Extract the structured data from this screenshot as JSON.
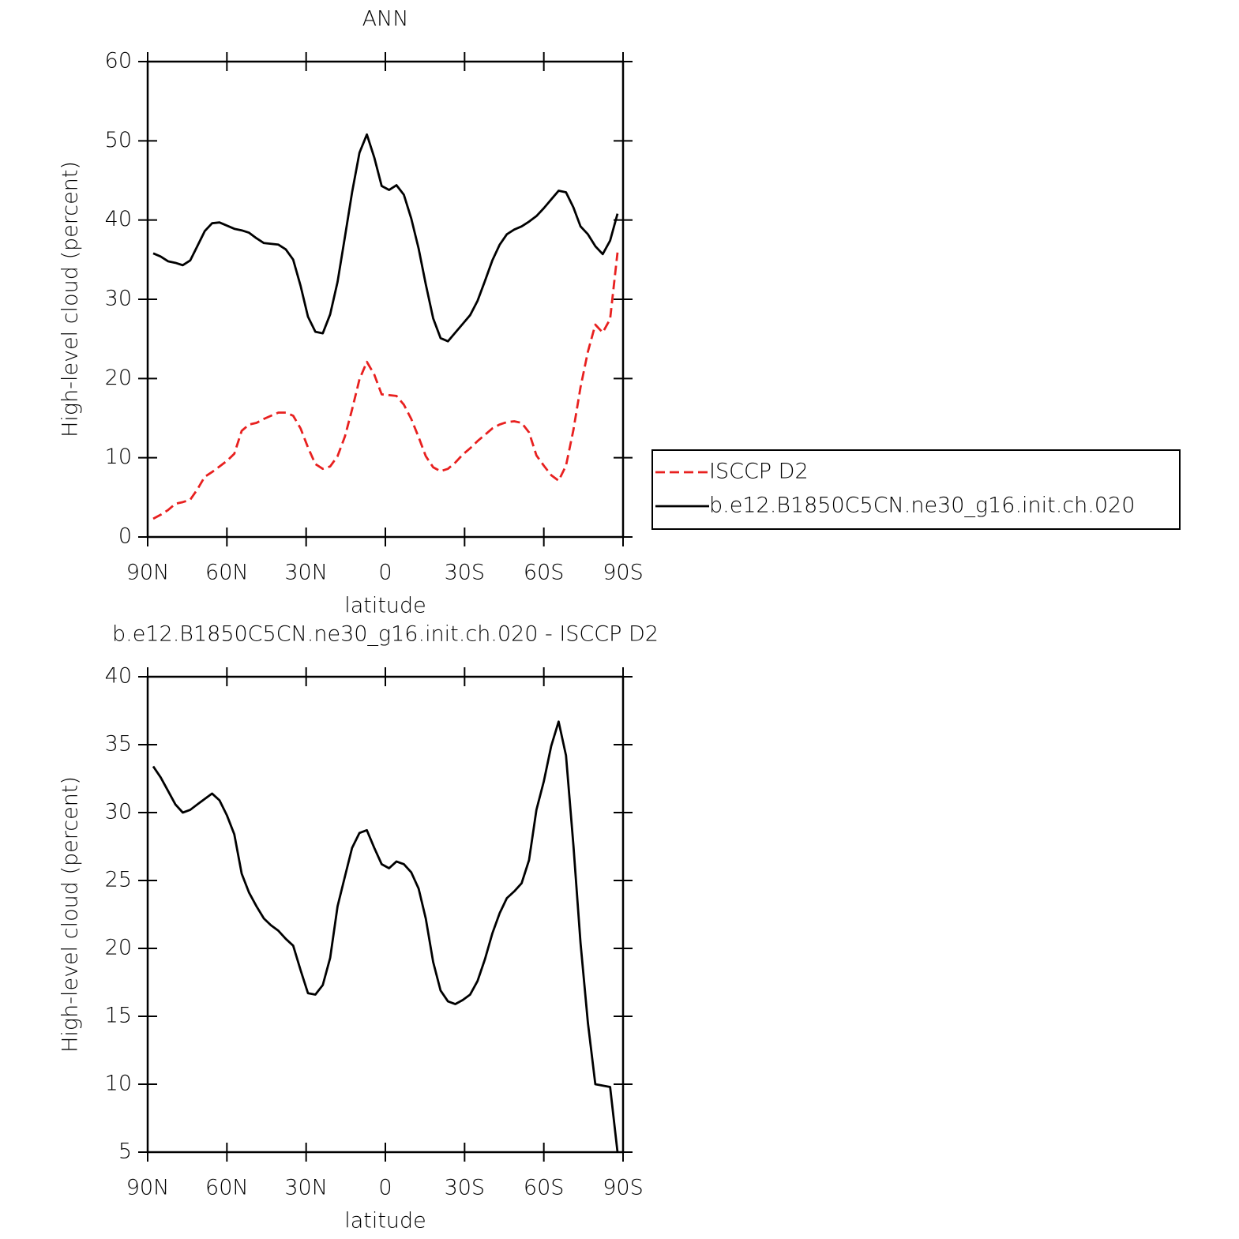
{
  "chart_data": [
    {
      "type": "line",
      "title": "ANN",
      "xlabel": "latitude",
      "ylabel": "High-level cloud (percent)",
      "xlim": [
        90,
        -90
      ],
      "ylim": [
        0,
        60
      ],
      "xticks": [
        {
          "value": 90,
          "label": "90N"
        },
        {
          "value": 60,
          "label": "60N"
        },
        {
          "value": 30,
          "label": "30N"
        },
        0,
        {
          "value": -30,
          "label": "30S"
        },
        {
          "value": -60,
          "label": "60S"
        },
        {
          "value": -90,
          "label": "90S"
        }
      ],
      "yticks": [
        0,
        10,
        20,
        30,
        40,
        50,
        60
      ],
      "legend": "right",
      "x": [
        87.9,
        85.1,
        82.3,
        79.5,
        76.7,
        73.9,
        71.2,
        68.4,
        65.6,
        62.8,
        60.0,
        57.2,
        54.4,
        51.6,
        48.8,
        46.0,
        43.3,
        40.5,
        37.7,
        34.9,
        32.1,
        29.3,
        26.5,
        23.7,
        20.9,
        18.1,
        15.3,
        12.6,
        9.8,
        7.0,
        4.2,
        1.4,
        -1.4,
        -4.2,
        -7.0,
        -9.8,
        -12.6,
        -15.3,
        -18.1,
        -20.9,
        -23.7,
        -26.5,
        -29.3,
        -32.1,
        -34.9,
        -37.7,
        -40.5,
        -43.3,
        -46.0,
        -48.8,
        -51.6,
        -54.4,
        -57.2,
        -60.0,
        -62.8,
        -65.6,
        -68.4,
        -71.2,
        -73.9,
        -76.7,
        -79.5,
        -82.3,
        -85.1,
        -87.9
      ],
      "series": [
        {
          "name": "ISCCP D2",
          "color": "#e8201f",
          "line_style": "dashed",
          "values": [
            2.3,
            2.8,
            3.4,
            4.2,
            4.4,
            4.7,
            6.0,
            7.6,
            8.2,
            8.9,
            9.6,
            10.5,
            13.4,
            14.2,
            14.4,
            14.9,
            15.3,
            15.7,
            15.7,
            15.3,
            13.7,
            11.3,
            9.2,
            8.6,
            8.9,
            10.2,
            12.7,
            16.1,
            19.9,
            22.1,
            20.5,
            18.0,
            17.9,
            17.8,
            16.7,
            14.9,
            12.6,
            10.2,
            8.8,
            8.3,
            8.6,
            9.4,
            10.4,
            11.2,
            12.1,
            12.9,
            13.7,
            14.2,
            14.5,
            14.6,
            14.4,
            13.2,
            10.3,
            9.0,
            7.8,
            7.1,
            9.0,
            13.5,
            18.9,
            23.4,
            26.8,
            25.8,
            27.5,
            35.9
          ]
        },
        {
          "name": "b.e12.B1850C5CN.ne30_g16.init.ch.020",
          "color": "#000000",
          "line_style": "solid",
          "values": [
            35.8,
            35.4,
            34.8,
            34.6,
            34.3,
            34.9,
            36.7,
            38.6,
            39.6,
            39.7,
            39.3,
            38.9,
            38.7,
            38.4,
            37.7,
            37.1,
            37.0,
            36.9,
            36.3,
            35.0,
            31.7,
            27.8,
            25.9,
            25.7,
            28.1,
            32.2,
            37.9,
            43.5,
            48.5,
            50.8,
            47.9,
            44.3,
            43.8,
            44.4,
            43.2,
            40.2,
            36.4,
            31.9,
            27.6,
            25.1,
            24.7,
            25.8,
            26.9,
            28.0,
            29.8,
            32.3,
            34.9,
            36.9,
            38.2,
            38.8,
            39.2,
            39.8,
            40.5,
            41.5,
            42.6,
            43.7,
            43.5,
            41.6,
            39.2,
            38.2,
            36.7,
            35.7,
            37.4,
            40.8
          ]
        }
      ]
    },
    {
      "type": "line",
      "title": "b.e12.B1850C5CN.ne30_g16.init.ch.020 - ISCCP D2",
      "xlabel": "latitude",
      "ylabel": "High-level cloud (percent)",
      "xlim": [
        90,
        -90
      ],
      "ylim": [
        5,
        40
      ],
      "xticks": [
        {
          "value": 90,
          "label": "90N"
        },
        {
          "value": 60,
          "label": "60N"
        },
        {
          "value": 30,
          "label": "30N"
        },
        0,
        {
          "value": -30,
          "label": "30S"
        },
        {
          "value": -60,
          "label": "60S"
        },
        {
          "value": -90,
          "label": "90S"
        }
      ],
      "yticks": [
        5,
        10,
        15,
        20,
        25,
        30,
        35,
        40
      ],
      "x": [
        87.9,
        85.1,
        82.3,
        79.5,
        76.7,
        73.9,
        71.2,
        68.4,
        65.6,
        62.8,
        60.0,
        57.2,
        54.4,
        51.6,
        48.8,
        46.0,
        43.3,
        40.5,
        37.7,
        34.9,
        32.1,
        29.3,
        26.5,
        23.7,
        20.9,
        18.1,
        15.3,
        12.6,
        9.8,
        7.0,
        4.2,
        1.4,
        -1.4,
        -4.2,
        -7.0,
        -9.8,
        -12.6,
        -15.3,
        -18.1,
        -20.9,
        -23.7,
        -26.5,
        -29.3,
        -32.1,
        -34.9,
        -37.7,
        -40.5,
        -43.3,
        -46.0,
        -48.8,
        -51.6,
        -54.4,
        -57.2,
        -60.0,
        -62.8,
        -65.6,
        -68.4,
        -71.2,
        -73.9,
        -76.7,
        -79.5,
        -82.3,
        -85.1,
        -87.9
      ],
      "series": [
        {
          "color": "#000000",
          "line_style": "solid",
          "values": [
            33.4,
            32.6,
            31.6,
            30.6,
            30.0,
            30.2,
            30.6,
            31.0,
            31.4,
            30.9,
            29.8,
            28.4,
            25.5,
            24.1,
            23.1,
            22.2,
            21.7,
            21.3,
            20.7,
            20.2,
            18.4,
            16.7,
            16.6,
            17.3,
            19.3,
            23.1,
            25.3,
            27.4,
            28.5,
            28.7,
            27.4,
            26.2,
            25.9,
            26.4,
            26.2,
            25.6,
            24.4,
            22.2,
            19.0,
            16.9,
            16.1,
            15.9,
            16.2,
            16.6,
            17.6,
            19.2,
            21.1,
            22.6,
            23.7,
            24.2,
            24.8,
            26.5,
            30.2,
            32.3,
            34.9,
            36.7,
            34.2,
            27.6,
            20.4,
            14.5,
            10.0,
            9.9,
            9.8,
            5.0
          ]
        }
      ]
    }
  ]
}
